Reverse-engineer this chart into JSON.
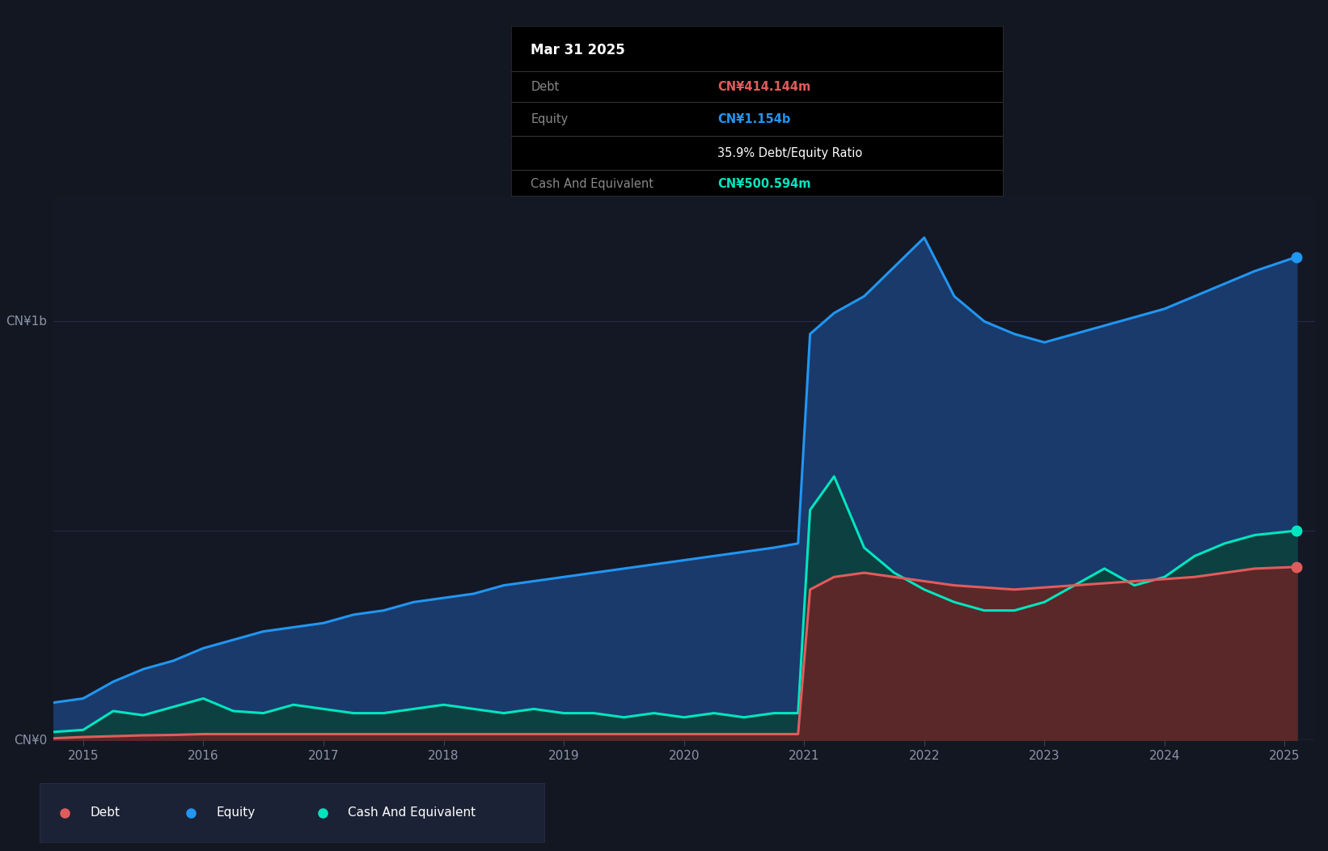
{
  "bg_color": "#131722",
  "chart_bg_color": "#141824",
  "ylabel_1b": "CN¥1b",
  "ylabel_0": "CN¥0",
  "x_ticks": [
    2015,
    2016,
    2017,
    2018,
    2019,
    2020,
    2021,
    2022,
    2023,
    2024,
    2025
  ],
  "equity_color": "#2196f3",
  "equity_fill": "#1a3a6b",
  "debt_color": "#e05c5c",
  "debt_fill": "#5a2828",
  "cash_color": "#00e5c0",
  "cash_fill": "#0d4040",
  "tooltip_bg": "#000000",
  "tooltip_title": "Mar 31 2025",
  "tooltip_debt_label": "Debt",
  "tooltip_debt_value": "CN¥414.144m",
  "tooltip_equity_label": "Equity",
  "tooltip_equity_value": "CN¥1.154b",
  "tooltip_ratio": "35.9% Debt/Equity Ratio",
  "tooltip_cash_label": "Cash And Equivalent",
  "tooltip_cash_value": "CN¥500.594m",
  "legend_items": [
    "Debt",
    "Equity",
    "Cash And Equivalent"
  ],
  "legend_colors": [
    "#e05c5c",
    "#2196f3",
    "#00e5c0"
  ],
  "equity_data": {
    "years": [
      2014.75,
      2015.0,
      2015.25,
      2015.5,
      2015.75,
      2016.0,
      2016.25,
      2016.5,
      2016.75,
      2017.0,
      2017.25,
      2017.5,
      2017.75,
      2018.0,
      2018.25,
      2018.5,
      2018.75,
      2019.0,
      2019.25,
      2019.5,
      2019.75,
      2020.0,
      2020.25,
      2020.5,
      2020.75,
      2020.95,
      2021.05,
      2021.25,
      2021.5,
      2021.75,
      2022.0,
      2022.25,
      2022.5,
      2022.75,
      2023.0,
      2023.25,
      2023.5,
      2023.75,
      2024.0,
      2024.25,
      2024.5,
      2024.75,
      2025.1
    ],
    "values": [
      0.09,
      0.1,
      0.14,
      0.17,
      0.19,
      0.22,
      0.24,
      0.26,
      0.27,
      0.28,
      0.3,
      0.31,
      0.33,
      0.34,
      0.35,
      0.37,
      0.38,
      0.39,
      0.4,
      0.41,
      0.42,
      0.43,
      0.44,
      0.45,
      0.46,
      0.47,
      0.97,
      1.02,
      1.06,
      1.13,
      1.2,
      1.06,
      1.0,
      0.97,
      0.95,
      0.97,
      0.99,
      1.01,
      1.03,
      1.06,
      1.09,
      1.12,
      1.154
    ]
  },
  "cash_data": {
    "years": [
      2014.75,
      2015.0,
      2015.25,
      2015.5,
      2015.75,
      2016.0,
      2016.25,
      2016.5,
      2016.75,
      2017.0,
      2017.25,
      2017.5,
      2017.75,
      2018.0,
      2018.25,
      2018.5,
      2018.75,
      2019.0,
      2019.25,
      2019.5,
      2019.75,
      2020.0,
      2020.25,
      2020.5,
      2020.75,
      2020.95,
      2021.05,
      2021.25,
      2021.5,
      2021.75,
      2022.0,
      2022.25,
      2022.5,
      2022.75,
      2023.0,
      2023.25,
      2023.5,
      2023.75,
      2024.0,
      2024.25,
      2024.5,
      2024.75,
      2025.1
    ],
    "values": [
      0.02,
      0.025,
      0.07,
      0.06,
      0.08,
      0.1,
      0.07,
      0.065,
      0.085,
      0.075,
      0.065,
      0.065,
      0.075,
      0.085,
      0.075,
      0.065,
      0.075,
      0.065,
      0.065,
      0.055,
      0.065,
      0.055,
      0.065,
      0.055,
      0.065,
      0.065,
      0.55,
      0.63,
      0.46,
      0.4,
      0.36,
      0.33,
      0.31,
      0.31,
      0.33,
      0.37,
      0.41,
      0.37,
      0.39,
      0.44,
      0.47,
      0.49,
      0.5006
    ]
  },
  "debt_data": {
    "years": [
      2014.75,
      2015.0,
      2015.25,
      2015.5,
      2015.75,
      2016.0,
      2016.25,
      2016.5,
      2016.75,
      2017.0,
      2017.25,
      2017.5,
      2017.75,
      2018.0,
      2018.25,
      2018.5,
      2018.75,
      2019.0,
      2019.25,
      2019.5,
      2019.75,
      2020.0,
      2020.25,
      2020.5,
      2020.75,
      2020.95,
      2021.05,
      2021.25,
      2021.5,
      2021.75,
      2022.0,
      2022.25,
      2022.5,
      2022.75,
      2023.0,
      2023.25,
      2023.5,
      2023.75,
      2024.0,
      2024.25,
      2024.5,
      2024.75,
      2025.1
    ],
    "values": [
      0.005,
      0.008,
      0.01,
      0.012,
      0.013,
      0.015,
      0.015,
      0.015,
      0.015,
      0.015,
      0.015,
      0.015,
      0.015,
      0.015,
      0.015,
      0.015,
      0.015,
      0.015,
      0.015,
      0.015,
      0.015,
      0.015,
      0.015,
      0.015,
      0.015,
      0.015,
      0.36,
      0.39,
      0.4,
      0.39,
      0.38,
      0.37,
      0.365,
      0.36,
      0.365,
      0.37,
      0.375,
      0.38,
      0.385,
      0.39,
      0.4,
      0.41,
      0.414
    ]
  },
  "ylim": [
    0,
    1.3
  ],
  "xlim_left": 2014.75,
  "xlim_right": 2025.25,
  "gridline_color": "#2a3050",
  "gridline_y": [
    0.5,
    1.0
  ],
  "zero_line_color": "#3a4060",
  "axis_text_color": "#8a94a8",
  "tick_label_size": 11
}
